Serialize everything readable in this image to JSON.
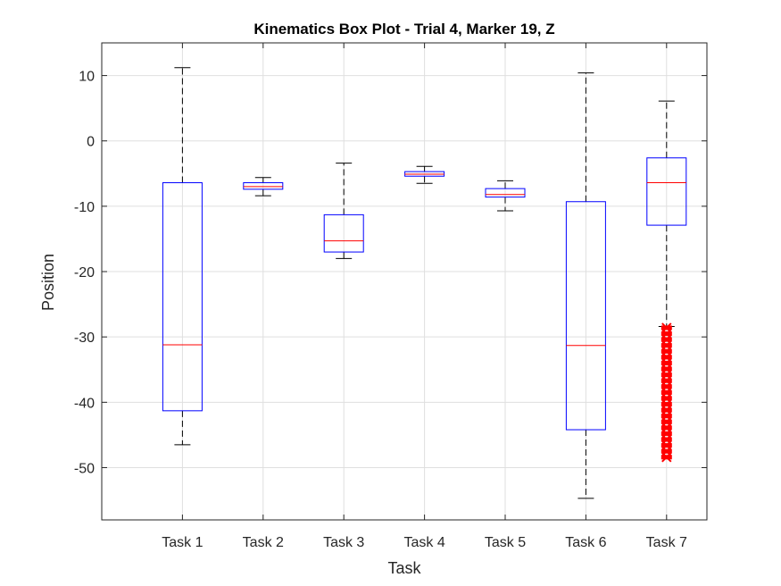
{
  "chart_data": {
    "type": "box",
    "title": "Kinematics Box Plot - Trial 4, Marker 19, Z",
    "xlabel": "Task",
    "ylabel": "Position",
    "ylim": [
      -58,
      15
    ],
    "yticks": [
      10,
      0,
      -10,
      -20,
      -30,
      -40,
      -50
    ],
    "grid": true,
    "categories": [
      "Task 1",
      "Task 2",
      "Task 3",
      "Task 4",
      "Task 5",
      "Task 6",
      "Task 7"
    ],
    "boxes": [
      {
        "category": "Task 1",
        "whisker_low": -46.5,
        "q1": -41.3,
        "median": -31.2,
        "q3": -6.4,
        "whisker_high": 11.2,
        "outliers": []
      },
      {
        "category": "Task 2",
        "whisker_low": -8.4,
        "q1": -7.4,
        "median": -7.0,
        "q3": -6.4,
        "whisker_high": -5.6,
        "outliers": []
      },
      {
        "category": "Task 3",
        "whisker_low": -18.0,
        "q1": -17.0,
        "median": -15.3,
        "q3": -11.3,
        "whisker_high": -3.4,
        "outliers": []
      },
      {
        "category": "Task 4",
        "whisker_low": -6.5,
        "q1": -5.4,
        "median": -5.1,
        "q3": -4.7,
        "whisker_high": -3.9,
        "outliers": []
      },
      {
        "category": "Task 5",
        "whisker_low": -10.7,
        "q1": -8.6,
        "median": -8.2,
        "q3": -7.3,
        "whisker_high": -6.1,
        "outliers": []
      },
      {
        "category": "Task 6",
        "whisker_low": -54.7,
        "q1": -44.2,
        "median": -31.3,
        "q3": -9.3,
        "whisker_high": 10.4,
        "outliers": []
      },
      {
        "category": "Task 7",
        "whisker_low": -28.4,
        "q1": -12.9,
        "median": -6.4,
        "q3": -2.6,
        "whisker_high": 6.1,
        "outliers": [
          -28.6,
          -29.5,
          -30.4,
          -31.3,
          -32.2,
          -33.1,
          -34.0,
          -34.9,
          -35.8,
          -36.7,
          -37.6,
          -38.5,
          -39.4,
          -40.3,
          -41.2,
          -42.1,
          -43.0,
          -43.9,
          -44.8,
          -45.7,
          -46.6,
          -47.5,
          -48.4
        ]
      }
    ],
    "colors": {
      "box": "#0000ff",
      "median": "#ff0000",
      "whisker": "#000000",
      "outlier": "#ff0000",
      "grid": "#dfdfdf",
      "axes": "#262626"
    }
  }
}
